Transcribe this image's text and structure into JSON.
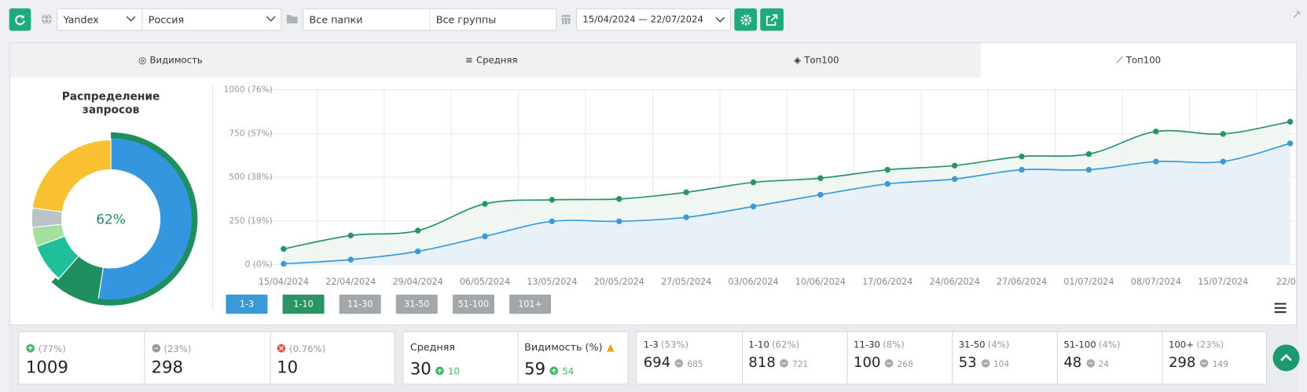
{
  "toolbar": {
    "engine": "Yandex",
    "region": "Россия",
    "folders": "Все папки",
    "groups": "Все группы",
    "date_range": "15/04/2024 — 22/07/2024"
  },
  "tabs": [
    "Видимость",
    "Средняя",
    "Топ100",
    "Топ100"
  ],
  "chart_data": [
    {
      "type": "donut",
      "title": "Распределение запросов",
      "center_label": "62%",
      "values": [
        53,
        9,
        8,
        4,
        4,
        23
      ],
      "colors": [
        "#3596e0",
        "#1f8f5f",
        "#1fbf9a",
        "#a3e0a0",
        "#b9c3c8",
        "#f9c032"
      ],
      "outer_values": [
        62
      ],
      "outer_color": "#1f8f5f"
    },
    {
      "type": "line",
      "categories": [
        "15/04/2024",
        "22/04/2024",
        "29/04/2024",
        "06/05/2024",
        "13/05/2024",
        "20/05/2024",
        "27/05/2024",
        "03/06/2024",
        "10/06/2024",
        "17/06/2024",
        "24/06/2024",
        "27/06/2024",
        "01/07/2024",
        "08/07/2024",
        "15/07/2024",
        "22/0..."
      ],
      "series": [
        {
          "name": "1-3",
          "color": "#3a9ad9",
          "values": [
            5,
            29,
            76,
            162,
            248,
            248,
            271,
            333,
            400,
            462,
            490,
            543,
            543,
            590,
            590,
            694
          ]
        },
        {
          "name": "1-10",
          "color": "#2a9463",
          "values": [
            90,
            167,
            195,
            348,
            371,
            376,
            414,
            471,
            495,
            543,
            567,
            619,
            633,
            762,
            748,
            818
          ]
        }
      ],
      "hidden_series": [
        "11-30",
        "31-50",
        "51-100",
        "101+"
      ],
      "ylim": [
        0,
        1000
      ],
      "yticks": [
        {
          "value": 0,
          "label": "0 (0%)"
        },
        {
          "value": 250,
          "label": "250 (19%)"
        },
        {
          "value": 500,
          "label": "500 (38%)"
        },
        {
          "value": 750,
          "label": "750 (57%)"
        },
        {
          "value": 1000,
          "label": "1000 (76%)"
        }
      ],
      "grid": true
    }
  ],
  "summary": {
    "positions": [
      {
        "percent": "(77%)",
        "value": 1009
      },
      {
        "percent": "(23%)",
        "value": 298
      },
      {
        "percent": "(0.76%)",
        "value": 10
      }
    ],
    "metrics": [
      {
        "label": "Средняя",
        "value": 30,
        "change": 10
      },
      {
        "label": "Видимость (%)",
        "value": 59,
        "change": 54
      }
    ],
    "groups": [
      {
        "label": "1-3",
        "percent": "(53%)",
        "value": 694,
        "previous": 685
      },
      {
        "label": "1-10",
        "percent": "(62%)",
        "value": 818,
        "previous": 721
      },
      {
        "label": "11-30",
        "percent": "(8%)",
        "value": 100,
        "previous": 268
      },
      {
        "label": "31-50",
        "percent": "(4%)",
        "value": 53,
        "previous": 104
      },
      {
        "label": "51-100",
        "percent": "(4%)",
        "value": 48,
        "previous": 24
      },
      {
        "label": "100+",
        "percent": "(23%)",
        "value": 298,
        "previous": 149
      }
    ]
  }
}
